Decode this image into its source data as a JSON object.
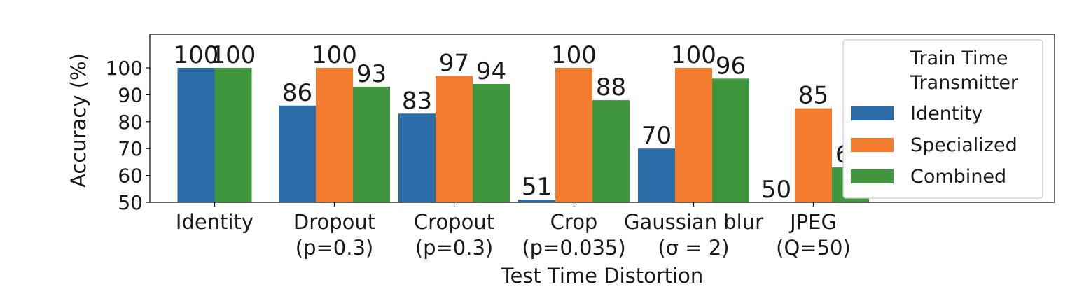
{
  "chart_data": {
    "type": "bar",
    "categories": [
      "Identity",
      "Dropout\n(p=0.3)",
      "Cropout\n(p=0.3)",
      "Crop\n(p=0.035)",
      "Gaussian blur\n(σ = 2)",
      "JPEG\n(Q=50)"
    ],
    "series": [
      {
        "name": "Identity",
        "color": "#2b6ca8",
        "values": [
          100,
          86,
          83,
          51,
          70,
          50
        ]
      },
      {
        "name": "Specialized",
        "color": "#f47c2e",
        "values": [
          null,
          100,
          97,
          100,
          100,
          85
        ]
      },
      {
        "name": "Combined",
        "color": "#3f963c",
        "values": [
          100,
          93,
          94,
          88,
          96,
          63
        ]
      }
    ],
    "data_labels": [
      [
        "100",
        "86",
        "83",
        "51",
        "70",
        "50"
      ],
      [
        "",
        "100",
        "97",
        "100",
        "100",
        "85"
      ],
      [
        "100",
        "93",
        "94",
        "88",
        "96",
        "63"
      ]
    ],
    "xlabel": "Test Time Distortion",
    "ylabel": "Accuracy (%)",
    "yticks": [
      50,
      60,
      70,
      80,
      90,
      100
    ],
    "ylim": [
      50,
      112.5
    ],
    "legend": {
      "title_lines": [
        "Train Time",
        "Transmitter"
      ],
      "placement": "right"
    },
    "grid": false
  }
}
